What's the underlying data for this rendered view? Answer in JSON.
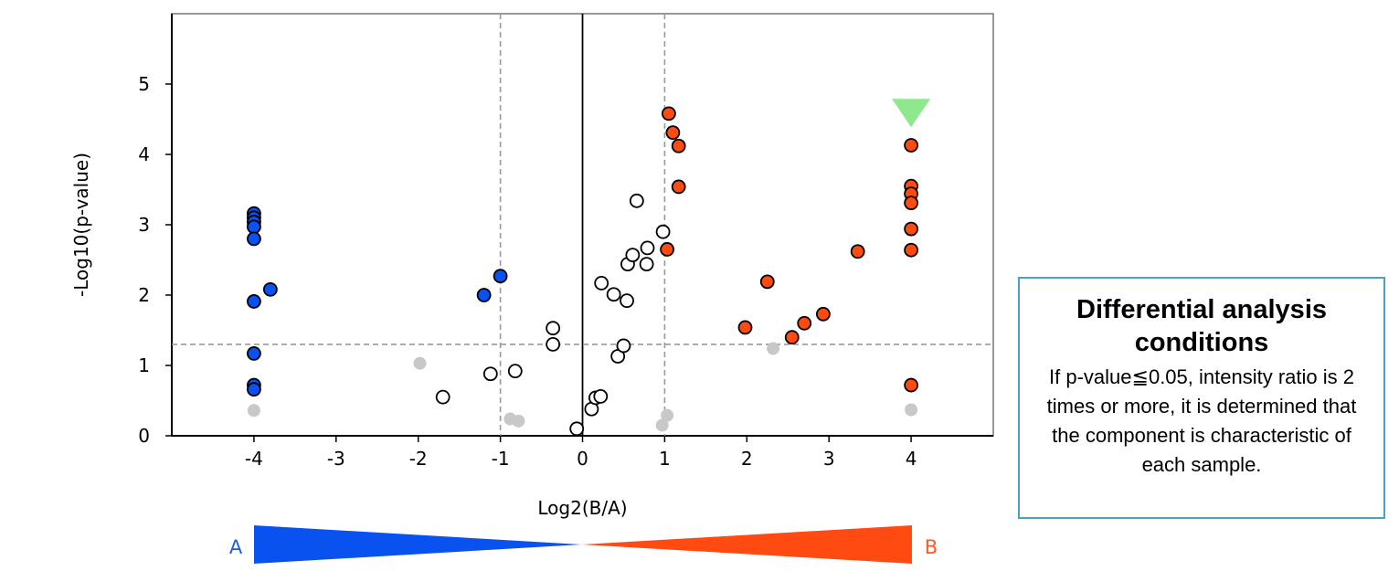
{
  "chart_data": {
    "type": "scatter",
    "xlabel": "Log2(B/A)",
    "ylabel": "-Log10(p-value)",
    "xlim": [
      -5,
      5
    ],
    "ylim": [
      0,
      6
    ],
    "x_ticks": [
      -4,
      -3,
      -2,
      -1,
      0,
      1,
      2,
      3,
      4
    ],
    "y_ticks": [
      0,
      1,
      2,
      3,
      4,
      5
    ],
    "grid": false,
    "threshold_lines": {
      "x": [
        -1,
        1
      ],
      "y": 1.3
    },
    "colors": {
      "A_side": "#0a52f0",
      "B_side": "#ff4a12",
      "not_significant": "#c8c8c8",
      "open_marker": "#ffffff",
      "highlight": "#8ee88e"
    },
    "series": [
      {
        "marker": "filled-blue",
        "points": [
          [
            -4,
            3.16
          ],
          [
            -4,
            3.1
          ],
          [
            -4,
            3.04
          ],
          [
            -4,
            2.97
          ],
          [
            -4,
            2.8
          ],
          [
            -4,
            1.91
          ],
          [
            -4,
            1.17
          ],
          [
            -4,
            0.72
          ],
          [
            -4,
            0.66
          ],
          [
            -3.8,
            2.08
          ],
          [
            -1.2,
            2.0
          ],
          [
            -1.0,
            2.27
          ]
        ]
      },
      {
        "marker": "filled-orange",
        "points": [
          [
            1.05,
            4.58
          ],
          [
            1.1,
            4.31
          ],
          [
            1.17,
            4.12
          ],
          [
            1.17,
            3.54
          ],
          [
            1.03,
            2.65
          ],
          [
            1.98,
            1.54
          ],
          [
            2.25,
            2.19
          ],
          [
            2.55,
            1.4
          ],
          [
            2.7,
            1.6
          ],
          [
            2.93,
            1.73
          ],
          [
            3.35,
            2.62
          ],
          [
            4,
            4.13
          ],
          [
            4,
            3.55
          ],
          [
            4,
            3.44
          ],
          [
            4,
            3.31
          ],
          [
            4,
            2.94
          ],
          [
            4,
            2.64
          ],
          [
            4,
            0.72
          ]
        ]
      },
      {
        "marker": "open",
        "points": [
          [
            -1.7,
            0.55
          ],
          [
            -1.12,
            0.88
          ],
          [
            -0.82,
            0.92
          ],
          [
            -0.36,
            1.53
          ],
          [
            -0.36,
            1.3
          ],
          [
            -0.07,
            0.1
          ],
          [
            0.11,
            0.38
          ],
          [
            0.16,
            0.54
          ],
          [
            0.22,
            0.56
          ],
          [
            0.23,
            2.17
          ],
          [
            0.38,
            2.01
          ],
          [
            0.43,
            1.13
          ],
          [
            0.5,
            1.28
          ],
          [
            0.54,
            1.92
          ],
          [
            0.55,
            2.44
          ],
          [
            0.61,
            2.57
          ],
          [
            0.66,
            3.34
          ],
          [
            0.78,
            2.44
          ],
          [
            0.79,
            2.67
          ],
          [
            0.98,
            2.9
          ]
        ]
      },
      {
        "marker": "grey",
        "points": [
          [
            -4,
            0.36
          ],
          [
            -1.98,
            1.03
          ],
          [
            -0.88,
            0.24
          ],
          [
            -0.78,
            0.21
          ],
          [
            0.97,
            0.15
          ],
          [
            1.03,
            0.29
          ],
          [
            2.32,
            1.24
          ],
          [
            4,
            0.37
          ]
        ]
      }
    ],
    "highlight_marker": {
      "shape": "triangle-down",
      "x": 4,
      "y": 4.4
    }
  },
  "gradient_bar": {
    "left_label": "A",
    "right_label": "B"
  },
  "note": {
    "title": "Differential analysis conditions",
    "body": "If p-value≦0.05, intensity ratio is 2 times or more, it is determined that the component is characteristic of each sample."
  }
}
